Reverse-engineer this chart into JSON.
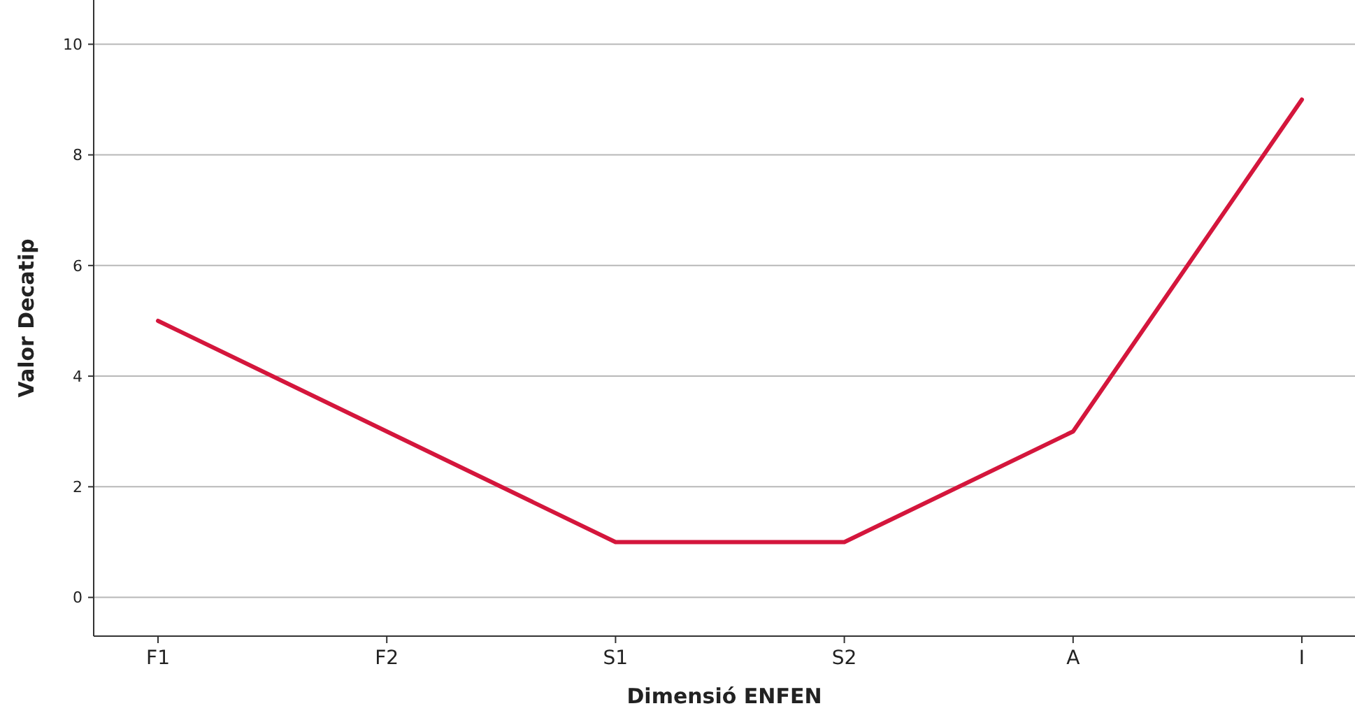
{
  "chart_data": {
    "type": "line",
    "xlabel": "Dimensió ENFEN",
    "ylabel": "Valor Decatip",
    "categories": [
      "F1",
      "F2",
      "S1",
      "S2",
      "A",
      "I"
    ],
    "series": [
      {
        "color": "#d4163c",
        "values": [
          5,
          3,
          1,
          1,
          3,
          9
        ]
      }
    ],
    "ylim": [
      -0.7,
      10.8
    ],
    "yticks": [
      0,
      2,
      4,
      6,
      8,
      10
    ],
    "grid": "y",
    "marker": "none",
    "line_style": "solid"
  }
}
